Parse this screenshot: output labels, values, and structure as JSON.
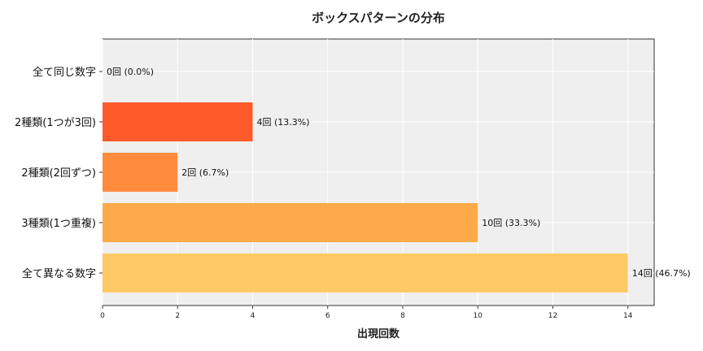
{
  "chart_data": {
    "type": "bar",
    "orientation": "horizontal",
    "title": "ボックスパターンの分布",
    "xlabel": "出現回数",
    "ylabel": "",
    "xlim": [
      0,
      14.7
    ],
    "xticks": [
      0,
      2,
      4,
      6,
      8,
      10,
      12,
      14
    ],
    "grid": true,
    "categories": [
      "全て同じ数字",
      "2種類(1つが3回)",
      "2種類(2回ずつ)",
      "3種類(1つ重複)",
      "全て異なる数字"
    ],
    "values": [
      0,
      4,
      2,
      10,
      14
    ],
    "data_labels": [
      "0回 (0.0%)",
      "4回 (13.3%)",
      "2回 (6.7%)",
      "10回 (33.3%)",
      "14回 (46.7%)"
    ],
    "colors": [
      "#ff3b1f",
      "#ff5a2a",
      "#ff8c3d",
      "#ffaa4a",
      "#ffc966"
    ]
  }
}
